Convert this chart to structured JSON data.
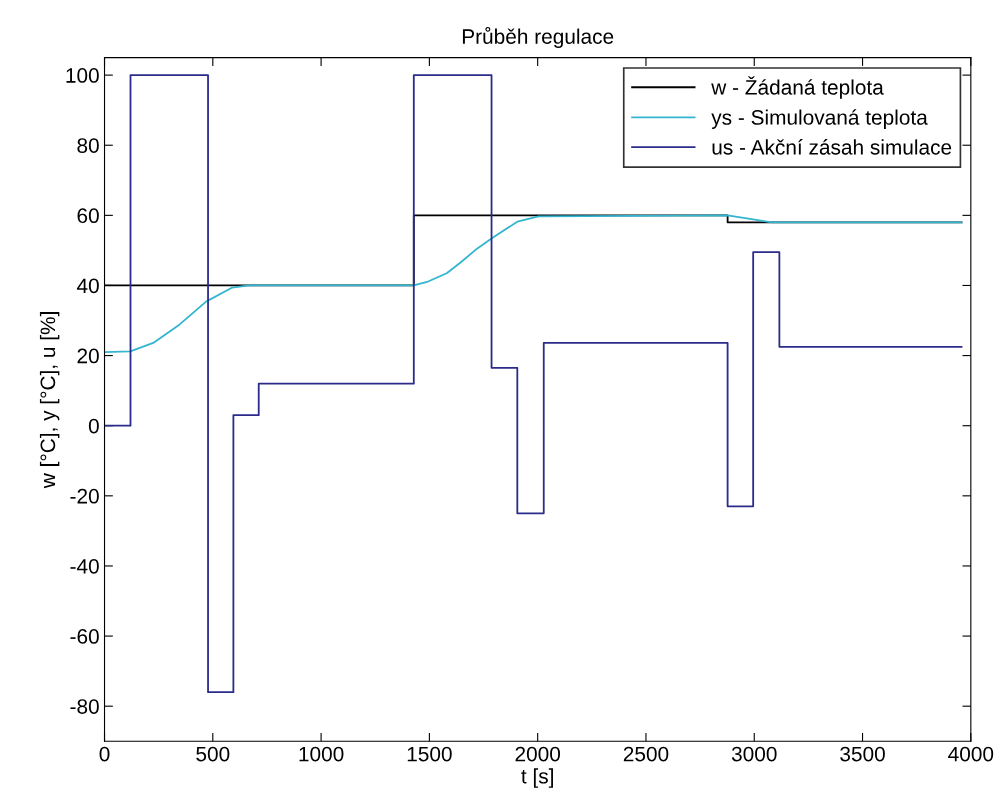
{
  "chart_data": {
    "type": "line",
    "title": "Průběh regulace",
    "xlabel": "t [s]",
    "ylabel": "w [°C], y [°C], u [%]",
    "xlim": [
      0,
      4000
    ],
    "ylim": [
      -90,
      105
    ],
    "xticks": [
      0,
      500,
      1000,
      1500,
      2000,
      2500,
      3000,
      3500,
      4000
    ],
    "yticks": [
      -80,
      -60,
      -40,
      -20,
      0,
      20,
      40,
      60,
      80,
      100
    ],
    "grid": false,
    "legend": "top right",
    "marker": "none",
    "line_style": "solid",
    "series": [
      {
        "name": "w - Žádaná teplota",
        "type": "step",
        "color": "#000000",
        "x": [
          0,
          1428,
          2877,
          3957
        ],
        "values": [
          40,
          60,
          58,
          58
        ]
      },
      {
        "name": "ys - Simulovaná teplota",
        "color": "#33b5d0",
        "x": [
          0,
          119,
          225,
          347,
          469,
          590,
          667,
          1000,
          1428,
          1489,
          1580,
          1641,
          1720,
          1792,
          1906,
          2004,
          2877,
          2980,
          3080,
          3957
        ],
        "values": [
          21,
          21.2,
          23.6,
          28.9,
          35.4,
          39.4,
          40,
          40,
          40,
          41,
          43.5,
          46.4,
          50.5,
          53.6,
          58.2,
          59.7,
          60,
          59,
          58,
          58
        ]
      },
      {
        "name": "us - Akční zásah simulace",
        "type": "step",
        "color": "#2b2b8c",
        "x": [
          0,
          120,
          478,
          595,
          712,
          1428,
          1787,
          1906,
          2028,
          2877,
          2995,
          3116,
          3957
        ],
        "values": [
          0,
          100,
          -76,
          3,
          12,
          100,
          16.5,
          -25,
          23.6,
          -23,
          49.5,
          22.5,
          22.5
        ]
      }
    ]
  }
}
